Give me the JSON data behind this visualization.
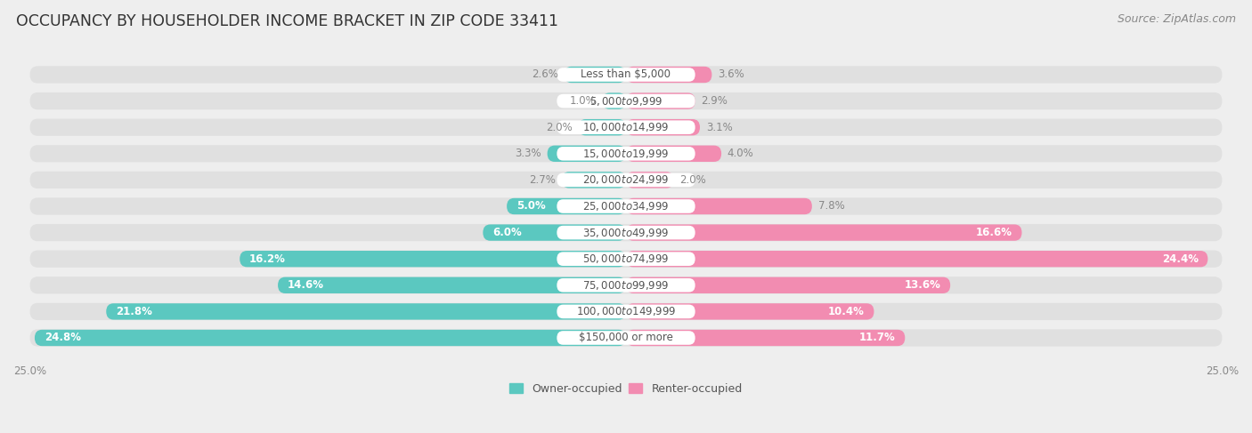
{
  "title": "OCCUPANCY BY HOUSEHOLDER INCOME BRACKET IN ZIP CODE 33411",
  "source": "Source: ZipAtlas.com",
  "categories": [
    "Less than $5,000",
    "$5,000 to $9,999",
    "$10,000 to $14,999",
    "$15,000 to $19,999",
    "$20,000 to $24,999",
    "$25,000 to $34,999",
    "$35,000 to $49,999",
    "$50,000 to $74,999",
    "$75,000 to $99,999",
    "$100,000 to $149,999",
    "$150,000 or more"
  ],
  "owner_values": [
    2.6,
    1.0,
    2.0,
    3.3,
    2.7,
    5.0,
    6.0,
    16.2,
    14.6,
    21.8,
    24.8
  ],
  "renter_values": [
    3.6,
    2.9,
    3.1,
    4.0,
    2.0,
    7.8,
    16.6,
    24.4,
    13.6,
    10.4,
    11.7
  ],
  "owner_color": "#5BC8C0",
  "renter_color": "#F28CB1",
  "background_color": "#eeeeee",
  "row_bg_color": "#e0e0e0",
  "bar_bg_color": "#e8e8e8",
  "label_pill_color": "#ffffff",
  "label_text_color": "#555555",
  "value_label_color_outside": "#888888",
  "value_label_color_inside": "#ffffff",
  "axis_max": 25.0,
  "title_fontsize": 12.5,
  "source_fontsize": 9,
  "value_label_fontsize": 8.5,
  "category_fontsize": 8.5,
  "legend_fontsize": 9,
  "axis_label_fontsize": 8.5,
  "owner_label": "Owner-occupied",
  "renter_label": "Renter-occupied",
  "inside_label_threshold_owner": 5.0,
  "inside_label_threshold_renter": 10.0
}
